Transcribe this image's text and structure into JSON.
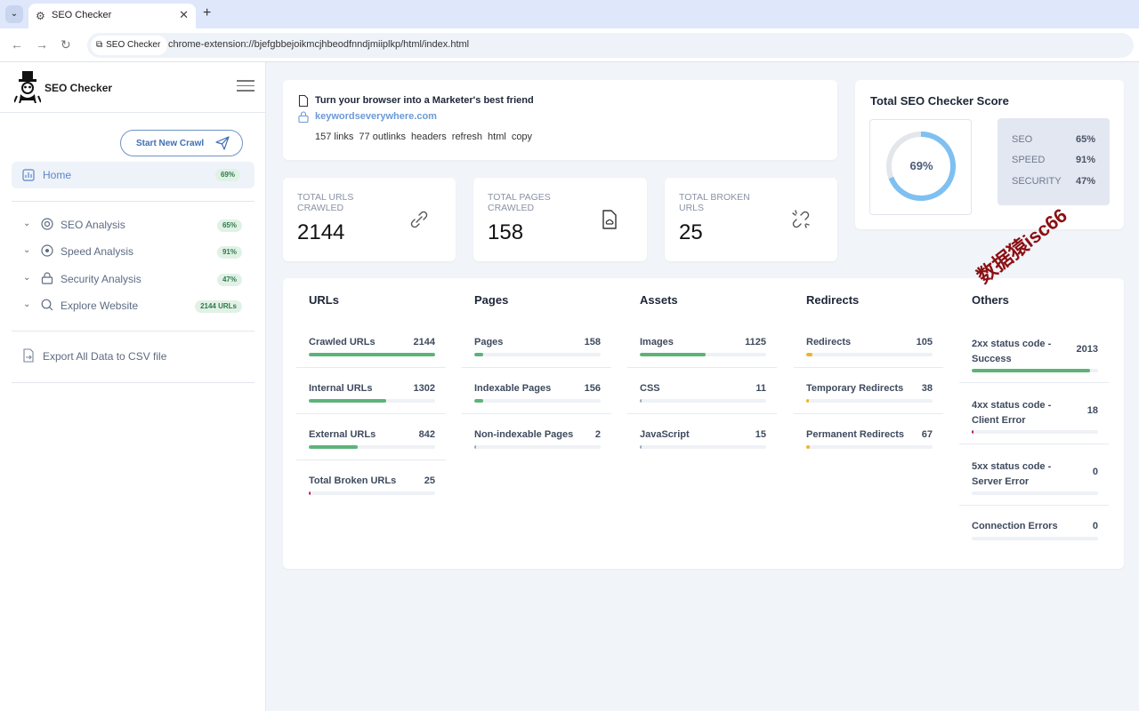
{
  "browser": {
    "tab_title": "SEO Checker",
    "site_chip": "SEO Checker",
    "url": "chrome-extension://bjefgbbejoikmcjhbeodfnndjmiiplkp/html/index.html"
  },
  "sidebar": {
    "brand": "SEO Checker",
    "start_crawl": "Start New Crawl",
    "home": {
      "label": "Home",
      "badge": "69%"
    },
    "items": [
      {
        "label": "SEO Analysis",
        "badge": "65%"
      },
      {
        "label": "Speed Analysis",
        "badge": "91%"
      },
      {
        "label": "Security Analysis",
        "badge": "47%"
      },
      {
        "label": "Explore Website",
        "badge": "2144 URLs"
      }
    ],
    "export": "Export All Data to CSV file"
  },
  "info": {
    "title": "Turn your browser into a Marketer's best friend",
    "link": "keywordseverywhere.com",
    "actions": [
      "157 links",
      "77 outlinks",
      "headers",
      "refresh",
      "html",
      "copy"
    ]
  },
  "stats": [
    {
      "label": "TOTAL URLS CRAWLED",
      "value": "2144"
    },
    {
      "label": "TOTAL PAGES CRAWLED",
      "value": "158"
    },
    {
      "label": "TOTAL BROKEN URLS",
      "value": "25"
    }
  ],
  "score": {
    "title": "Total SEO Checker Score",
    "overall": "69%",
    "overall_fraction": 0.69,
    "rows": [
      {
        "key": "SEO",
        "value": "65%"
      },
      {
        "key": "SPEED",
        "value": "91%"
      },
      {
        "key": "SECURITY",
        "value": "47%"
      }
    ]
  },
  "columns": [
    {
      "title": "URLs",
      "metrics": [
        {
          "name": "Crawled URLs",
          "value": "2144",
          "fraction": 1.0,
          "color": "#5cb37a"
        },
        {
          "name": "Internal URLs",
          "value": "1302",
          "fraction": 0.61,
          "color": "#5cb37a"
        },
        {
          "name": "External URLs",
          "value": "842",
          "fraction": 0.39,
          "color": "#5cb37a"
        },
        {
          "name": "Total Broken URLs",
          "value": "25",
          "fraction": 0.012,
          "color": "#c2185b"
        }
      ]
    },
    {
      "title": "Pages",
      "metrics": [
        {
          "name": "Pages",
          "value": "158",
          "fraction": 0.07,
          "color": "#5cb37a"
        },
        {
          "name": "Indexable Pages",
          "value": "156",
          "fraction": 0.07,
          "color": "#5cb37a"
        },
        {
          "name": "Non-indexable Pages",
          "value": "2",
          "fraction": 0.005,
          "color": "#9aa5b8"
        }
      ]
    },
    {
      "title": "Assets",
      "metrics": [
        {
          "name": "Images",
          "value": "1125",
          "fraction": 0.52,
          "color": "#5cb37a"
        },
        {
          "name": "CSS",
          "value": "11",
          "fraction": 0.005,
          "color": "#9aa5b8"
        },
        {
          "name": "JavaScript",
          "value": "15",
          "fraction": 0.007,
          "color": "#9aa5b8"
        }
      ]
    },
    {
      "title": "Redirects",
      "metrics": [
        {
          "name": "Redirects",
          "value": "105",
          "fraction": 0.05,
          "color": "#f0b429"
        },
        {
          "name": "Temporary Redirects",
          "value": "38",
          "fraction": 0.02,
          "color": "#f0b429"
        },
        {
          "name": "Permanent Redirects",
          "value": "67",
          "fraction": 0.03,
          "color": "#f0b429"
        }
      ]
    },
    {
      "title": "Others",
      "metrics": [
        {
          "name": "2xx status code - Success",
          "value": "2013",
          "fraction": 0.94,
          "color": "#5cb37a"
        },
        {
          "name": "4xx status code - Client Error",
          "value": "18",
          "fraction": 0.008,
          "color": "#c2185b"
        },
        {
          "name": "5xx status code - Server Error",
          "value": "0",
          "fraction": 0,
          "color": "#9aa5b8"
        },
        {
          "name": "Connection Errors",
          "value": "0",
          "fraction": 0,
          "color": "#9aa5b8"
        }
      ]
    }
  ],
  "watermark": "数据猿isc66",
  "colors": {
    "accent": "#6a9ad8",
    "gauge": "#7ec0f1",
    "gauge_track": "#e3e6ea"
  }
}
